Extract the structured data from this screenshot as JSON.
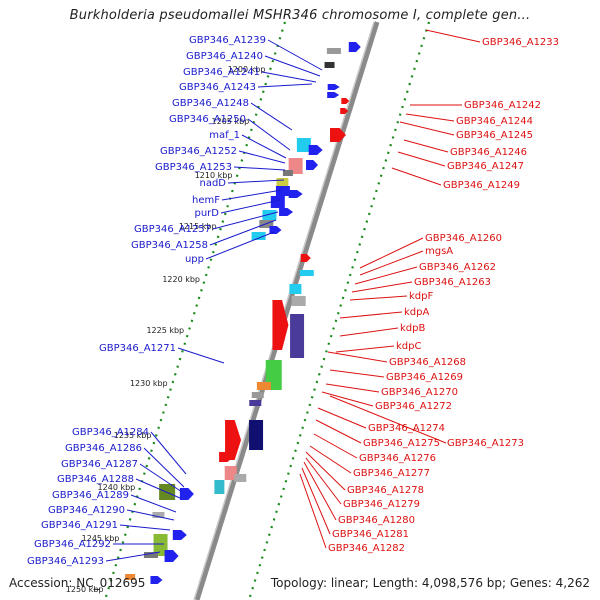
{
  "title": "Burkholderia pseudomallei MSHR346 chromosome I, complete gen...",
  "footer": {
    "accession": "Accession: NC_012695",
    "summary": "Topology: linear; Length: 4,098,576 bp; Genes: 4,262"
  },
  "colors": {
    "left_label": "#1a1acc",
    "right_label": "#dd1111"
  },
  "ticks": [
    "1200 kbp",
    "1205 kbp",
    "1210 kbp",
    "1215 kbp",
    "1220 kbp",
    "1225 kbp",
    "1230 kbp",
    "1235 kbp",
    "1240 kbp",
    "1245 kbp",
    "1250 kbp"
  ],
  "left_labels": [
    "GBP346_A1239",
    "GBP346_A1240",
    "GBP346_A1241",
    "GBP346_A1243",
    "GBP346_A1248",
    "GBP346_A1250",
    "maf_1",
    "GBP346_A1252",
    "GBP346_A1253",
    "nadD",
    "hemF",
    "purD",
    "GBP346_A1257",
    "GBP346_A1258",
    "upp",
    "GBP346_A1271",
    "GBP346_A1284",
    "GBP346_A1286",
    "GBP346_A1287",
    "GBP346_A1288",
    "GBP346_A1289",
    "GBP346_A1290",
    "GBP346_A1291",
    "GBP346_A1292",
    "GBP346_A1293"
  ],
  "right_labels": [
    "GBP346_A1233",
    "GBP346_A1242",
    "GBP346_A1244",
    "GBP346_A1245",
    "GBP346_A1246",
    "GBP346_A1247",
    "GBP346_A1249",
    "GBP346_A1260",
    "mgsA",
    "GBP346_A1262",
    "GBP346_A1263",
    "kdpF",
    "kdpA",
    "kdpB",
    "kdpC",
    "GBP346_A1268",
    "GBP346_A1269",
    "GBP346_A1270",
    "GBP346_A1272",
    "GBP346_A1274",
    "GBP346_A1275",
    "GBP346_A1276",
    "GBP346_A1277",
    "GBP346_A1278",
    "GBP346_A1279",
    "GBP346_A1280",
    "GBP346_A1281",
    "GBP346_A1282"
  ],
  "extra_right_label": "GBP346_A1273"
}
